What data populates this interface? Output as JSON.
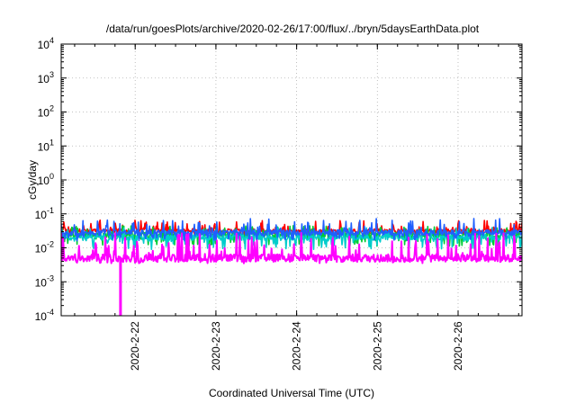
{
  "chart_data": {
    "type": "line",
    "title": "/data/run/goesPlots/archive/2020-02-26/17:00/flux/../bryn/5daysEarthData.plot",
    "xlabel": "Coordinated Universal Time (UTC)",
    "ylabel": "cGy/day",
    "yscale": "log",
    "ylim": [
      0.0001,
      10000
    ],
    "xlim": [
      "2020-02-21 02:00",
      "2020-02-26 19:00"
    ],
    "grid": true,
    "y_ticks": [
      {
        "value": 0.0001,
        "base": "10",
        "exp": "-4"
      },
      {
        "value": 0.001,
        "base": "10",
        "exp": "-3"
      },
      {
        "value": 0.01,
        "base": "10",
        "exp": "-2"
      },
      {
        "value": 0.1,
        "base": "10",
        "exp": "-1"
      },
      {
        "value": 1,
        "base": "10",
        "exp": "0"
      },
      {
        "value": 10,
        "base": "10",
        "exp": "1"
      },
      {
        "value": 100,
        "base": "10",
        "exp": "2"
      },
      {
        "value": 1000,
        "base": "10",
        "exp": "3"
      },
      {
        "value": 10000,
        "base": "10",
        "exp": "4"
      }
    ],
    "x_ticks": [
      {
        "value": "2020-02-22 00:00",
        "label": "2020-2-22"
      },
      {
        "value": "2020-02-23 00:00",
        "label": "2020-2-23"
      },
      {
        "value": "2020-02-24 00:00",
        "label": "2020-2-24"
      },
      {
        "value": "2020-02-25 00:00",
        "label": "2020-2-25"
      },
      {
        "value": "2020-02-26 00:00",
        "label": "2020-2-26"
      }
    ],
    "series": [
      {
        "color": "#ff0000",
        "typical": 0.032,
        "min": 0.024,
        "max": 0.065
      },
      {
        "color": "#00cc33",
        "typical": 0.024,
        "min": 0.011,
        "max": 0.045
      },
      {
        "color": "#00cccc",
        "typical": 0.02,
        "min": 0.009,
        "max": 0.04
      },
      {
        "color": "#1f5fff",
        "typical": 0.028,
        "min": 0.016,
        "max": 0.075
      },
      {
        "color": "#ff00ff",
        "typical": 0.005,
        "min": 0.0035,
        "max": 0.028,
        "dropout": {
          "x": "2020-02-21 19:30",
          "y": 0.0001
        }
      }
    ]
  }
}
